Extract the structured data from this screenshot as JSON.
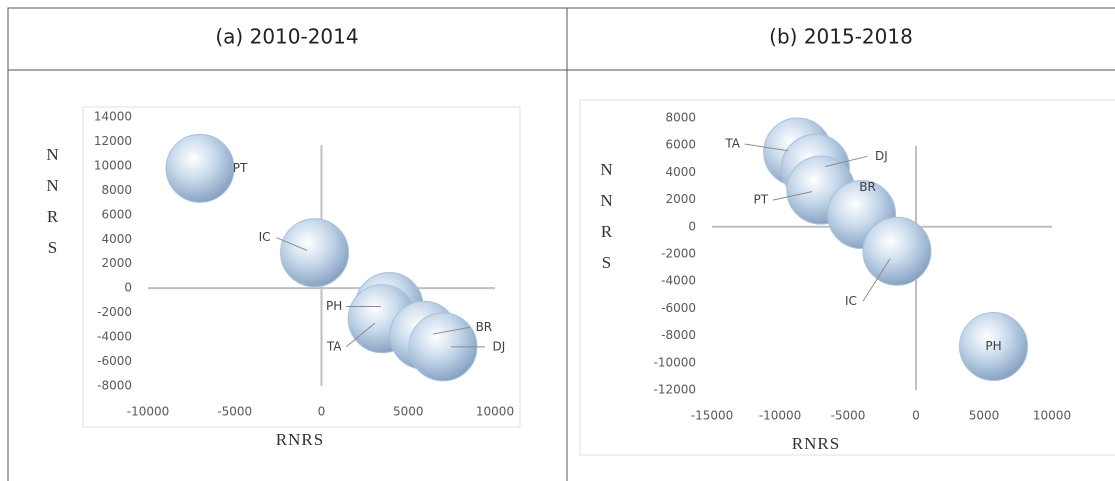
{
  "chart_data": [
    {
      "type": "bubble",
      "title": "(a) 2010-2014",
      "xlabel": "RNRS",
      "ylabel": "NNRS",
      "labels": [
        "PT",
        "IC",
        "PH",
        "TA",
        "BR",
        "DJ"
      ],
      "x": [
        -7000,
        -400,
        3900,
        3500,
        5900,
        7000
      ],
      "y": [
        9800,
        2900,
        -1500,
        -2500,
        -3850,
        -4800
      ],
      "sizes": [
        1,
        1,
        1,
        1,
        1,
        1
      ],
      "xlim": [
        -10000,
        10000
      ],
      "xticks": [
        -10000,
        -5000,
        0,
        5000,
        10000
      ],
      "ylim": [
        -8000,
        14000
      ],
      "yticks": [
        -8000,
        -6000,
        -4000,
        -2000,
        0,
        2000,
        4000,
        6000,
        8000,
        10000,
        12000,
        14000
      ],
      "color": "#a8c2de"
    },
    {
      "type": "bubble",
      "title": "(b) 2015-2018",
      "xlabel": "RNRS",
      "ylabel": "NNRS",
      "labels": [
        "TA",
        "DJ",
        "PT",
        "BR",
        "IC",
        "PH"
      ],
      "x": [
        -8700,
        -7400,
        -7000,
        -4000,
        -1400,
        5700
      ],
      "y": [
        5500,
        4300,
        2700,
        900,
        -1800,
        -8800
      ],
      "sizes": [
        1,
        1,
        1,
        1,
        1,
        1
      ],
      "xlim": [
        -15000,
        10000
      ],
      "xticks": [
        -15000,
        -10000,
        -5000,
        0,
        5000,
        10000
      ],
      "ylim": [
        -12000,
        8000
      ],
      "yticks": [
        -12000,
        -10000,
        -8000,
        -6000,
        -4000,
        -2000,
        0,
        2000,
        4000,
        6000,
        8000
      ],
      "color": "#a8c2de"
    }
  ]
}
